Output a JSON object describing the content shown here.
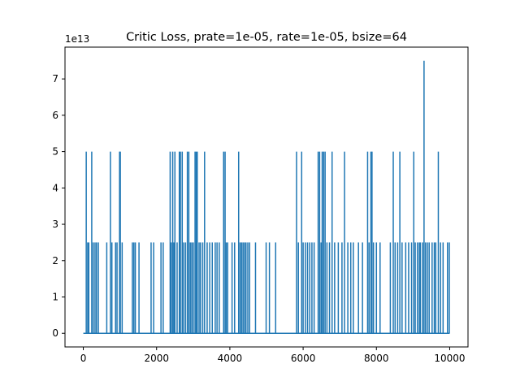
{
  "chart_data": {
    "type": "line",
    "title": "Critic Loss, prate=1e-05, rate=1e-05, bsize=64",
    "xlabel": "",
    "ylabel": "",
    "y_offset_label": "1e13",
    "xlim": [
      -500,
      10500
    ],
    "ylim": [
      -0.375,
      7.875
    ],
    "x_ticks": [
      0,
      2000,
      4000,
      6000,
      8000,
      10000
    ],
    "x_tick_labels": [
      "0",
      "2000",
      "4000",
      "6000",
      "8000",
      "10000"
    ],
    "y_ticks": [
      0,
      1,
      2,
      3,
      4,
      5,
      6,
      7
    ],
    "y_tick_labels": [
      "0",
      "1",
      "2",
      "3",
      "4",
      "5",
      "6",
      "7"
    ],
    "grid": false,
    "line_color": "#1f77b4",
    "series": [
      {
        "name": "",
        "spikes": [
          {
            "x": 80,
            "y": 5.0
          },
          {
            "x": 120,
            "y": 2.5
          },
          {
            "x": 150,
            "y": 2.5
          },
          {
            "x": 230,
            "y": 5.0
          },
          {
            "x": 270,
            "y": 2.5
          },
          {
            "x": 320,
            "y": 2.5
          },
          {
            "x": 360,
            "y": 2.5
          },
          {
            "x": 410,
            "y": 2.5
          },
          {
            "x": 640,
            "y": 2.5
          },
          {
            "x": 740,
            "y": 5.0
          },
          {
            "x": 780,
            "y": 2.5
          },
          {
            "x": 880,
            "y": 2.5
          },
          {
            "x": 920,
            "y": 2.5
          },
          {
            "x": 990,
            "y": 5.0
          },
          {
            "x": 1010,
            "y": 5.0
          },
          {
            "x": 1060,
            "y": 2.5
          },
          {
            "x": 1340,
            "y": 2.5
          },
          {
            "x": 1380,
            "y": 2.5
          },
          {
            "x": 1420,
            "y": 2.5
          },
          {
            "x": 1520,
            "y": 2.5
          },
          {
            "x": 1850,
            "y": 2.5
          },
          {
            "x": 1920,
            "y": 2.5
          },
          {
            "x": 2120,
            "y": 2.5
          },
          {
            "x": 2180,
            "y": 2.5
          },
          {
            "x": 2370,
            "y": 5.0
          },
          {
            "x": 2400,
            "y": 2.5
          },
          {
            "x": 2440,
            "y": 5.0
          },
          {
            "x": 2470,
            "y": 2.5
          },
          {
            "x": 2500,
            "y": 5.0
          },
          {
            "x": 2560,
            "y": 2.5
          },
          {
            "x": 2620,
            "y": 5.0
          },
          {
            "x": 2650,
            "y": 5.0
          },
          {
            "x": 2700,
            "y": 5.0
          },
          {
            "x": 2740,
            "y": 2.5
          },
          {
            "x": 2790,
            "y": 2.5
          },
          {
            "x": 2840,
            "y": 5.0
          },
          {
            "x": 2880,
            "y": 5.0
          },
          {
            "x": 2920,
            "y": 2.5
          },
          {
            "x": 2960,
            "y": 2.5
          },
          {
            "x": 3000,
            "y": 2.5
          },
          {
            "x": 3050,
            "y": 5.0
          },
          {
            "x": 3080,
            "y": 5.0
          },
          {
            "x": 3110,
            "y": 5.0
          },
          {
            "x": 3160,
            "y": 2.5
          },
          {
            "x": 3200,
            "y": 2.5
          },
          {
            "x": 3260,
            "y": 2.5
          },
          {
            "x": 3310,
            "y": 5.0
          },
          {
            "x": 3380,
            "y": 2.5
          },
          {
            "x": 3450,
            "y": 2.5
          },
          {
            "x": 3520,
            "y": 2.5
          },
          {
            "x": 3600,
            "y": 2.5
          },
          {
            "x": 3650,
            "y": 2.5
          },
          {
            "x": 3710,
            "y": 2.5
          },
          {
            "x": 3830,
            "y": 5.0
          },
          {
            "x": 3870,
            "y": 5.0
          },
          {
            "x": 3900,
            "y": 2.5
          },
          {
            "x": 3940,
            "y": 2.5
          },
          {
            "x": 4060,
            "y": 2.5
          },
          {
            "x": 4130,
            "y": 2.5
          },
          {
            "x": 4240,
            "y": 5.0
          },
          {
            "x": 4280,
            "y": 2.5
          },
          {
            "x": 4320,
            "y": 2.5
          },
          {
            "x": 4360,
            "y": 2.5
          },
          {
            "x": 4400,
            "y": 2.5
          },
          {
            "x": 4440,
            "y": 2.5
          },
          {
            "x": 4490,
            "y": 2.5
          },
          {
            "x": 4540,
            "y": 2.5
          },
          {
            "x": 4700,
            "y": 2.5
          },
          {
            "x": 4990,
            "y": 2.5
          },
          {
            "x": 5080,
            "y": 2.5
          },
          {
            "x": 5250,
            "y": 2.5
          },
          {
            "x": 5820,
            "y": 5.0
          },
          {
            "x": 5870,
            "y": 2.5
          },
          {
            "x": 5960,
            "y": 5.0
          },
          {
            "x": 6000,
            "y": 2.5
          },
          {
            "x": 6060,
            "y": 2.5
          },
          {
            "x": 6120,
            "y": 2.5
          },
          {
            "x": 6180,
            "y": 2.5
          },
          {
            "x": 6240,
            "y": 2.5
          },
          {
            "x": 6300,
            "y": 2.5
          },
          {
            "x": 6410,
            "y": 5.0
          },
          {
            "x": 6450,
            "y": 5.0
          },
          {
            "x": 6490,
            "y": 2.5
          },
          {
            "x": 6520,
            "y": 5.0
          },
          {
            "x": 6560,
            "y": 5.0
          },
          {
            "x": 6600,
            "y": 5.0
          },
          {
            "x": 6650,
            "y": 2.5
          },
          {
            "x": 6720,
            "y": 2.5
          },
          {
            "x": 6790,
            "y": 5.0
          },
          {
            "x": 6860,
            "y": 2.5
          },
          {
            "x": 6960,
            "y": 2.5
          },
          {
            "x": 7060,
            "y": 2.5
          },
          {
            "x": 7130,
            "y": 5.0
          },
          {
            "x": 7220,
            "y": 2.5
          },
          {
            "x": 7300,
            "y": 2.5
          },
          {
            "x": 7370,
            "y": 2.5
          },
          {
            "x": 7510,
            "y": 2.5
          },
          {
            "x": 7620,
            "y": 2.5
          },
          {
            "x": 7760,
            "y": 5.0
          },
          {
            "x": 7800,
            "y": 2.5
          },
          {
            "x": 7850,
            "y": 5.0
          },
          {
            "x": 7880,
            "y": 5.0
          },
          {
            "x": 7920,
            "y": 2.5
          },
          {
            "x": 8000,
            "y": 2.5
          },
          {
            "x": 8100,
            "y": 2.5
          },
          {
            "x": 8380,
            "y": 2.5
          },
          {
            "x": 8460,
            "y": 5.0
          },
          {
            "x": 8510,
            "y": 2.5
          },
          {
            "x": 8580,
            "y": 2.5
          },
          {
            "x": 8640,
            "y": 5.0
          },
          {
            "x": 8700,
            "y": 2.5
          },
          {
            "x": 8800,
            "y": 2.5
          },
          {
            "x": 8880,
            "y": 2.5
          },
          {
            "x": 8960,
            "y": 2.5
          },
          {
            "x": 9020,
            "y": 5.0
          },
          {
            "x": 9060,
            "y": 2.5
          },
          {
            "x": 9120,
            "y": 2.5
          },
          {
            "x": 9170,
            "y": 2.5
          },
          {
            "x": 9200,
            "y": 2.5
          },
          {
            "x": 9260,
            "y": 2.5
          },
          {
            "x": 9300,
            "y": 7.5
          },
          {
            "x": 9340,
            "y": 2.5
          },
          {
            "x": 9390,
            "y": 2.5
          },
          {
            "x": 9440,
            "y": 2.5
          },
          {
            "x": 9520,
            "y": 2.5
          },
          {
            "x": 9580,
            "y": 2.5
          },
          {
            "x": 9620,
            "y": 2.5
          },
          {
            "x": 9690,
            "y": 5.0
          },
          {
            "x": 9750,
            "y": 2.5
          },
          {
            "x": 9820,
            "y": 2.5
          },
          {
            "x": 9940,
            "y": 2.5
          },
          {
            "x": 9990,
            "y": 2.5
          }
        ],
        "baseline": 0,
        "x_start": 0,
        "x_end": 10000
      }
    ]
  }
}
